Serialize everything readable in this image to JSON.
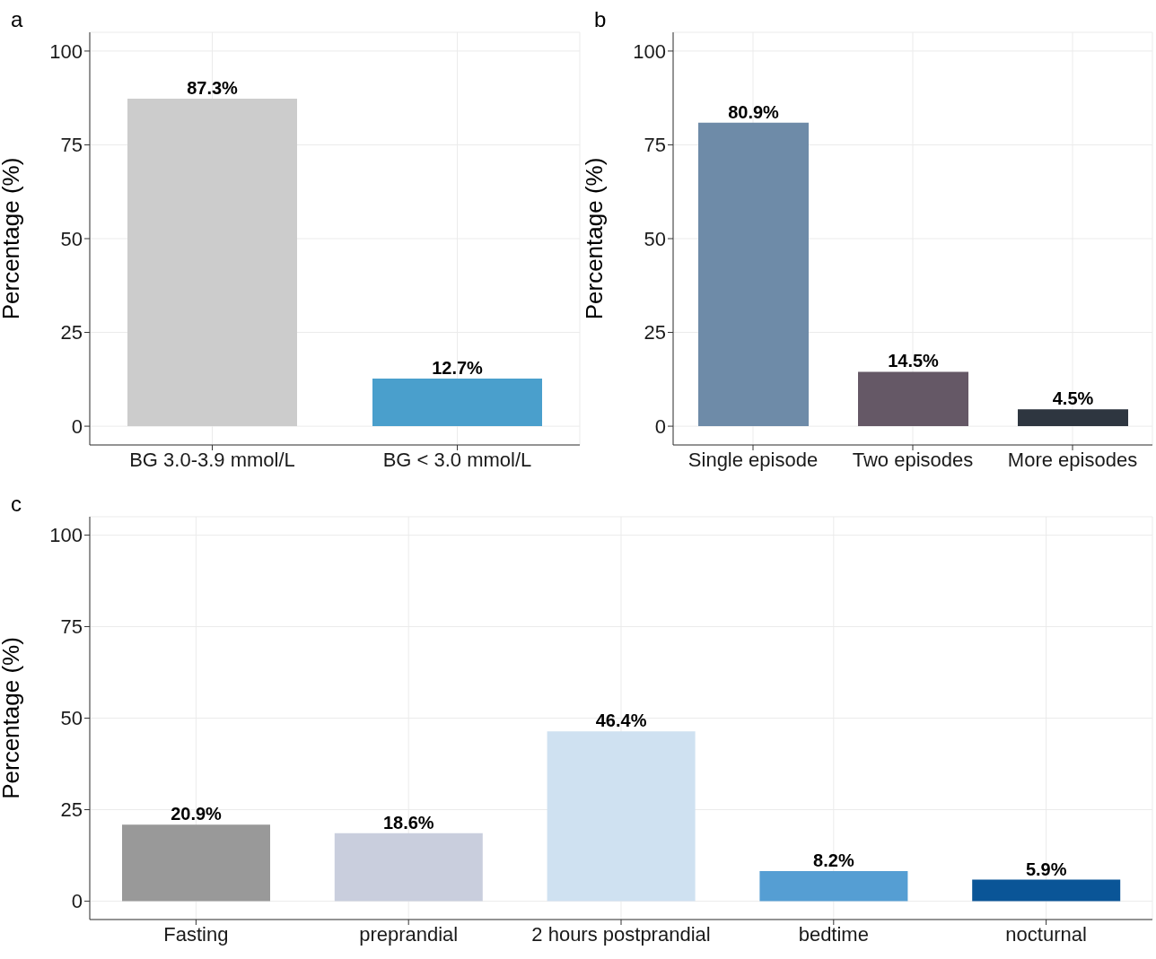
{
  "chart_data": [
    {
      "type": "bar",
      "title": "a",
      "ylabel": "Percentage (%)",
      "categories": [
        "BG 3.0-3.9 mmol/L",
        "BG < 3.0 mmol/L"
      ],
      "values": [
        87.3,
        12.7
      ],
      "colors": [
        "#cccccc",
        "#4a9fcc"
      ],
      "value_labels": [
        "87.3%",
        "12.7%"
      ],
      "ylim": [
        -5,
        105
      ],
      "yticks": [
        0,
        25,
        50,
        75,
        100
      ],
      "grid": true
    },
    {
      "type": "bar",
      "title": "b",
      "ylabel": "Percentage (%)",
      "categories": [
        "Single episode",
        "Two episodes",
        "More episodes"
      ],
      "values": [
        80.9,
        14.5,
        4.5
      ],
      "colors": [
        "#6e8ba8",
        "#655866",
        "#2e3640"
      ],
      "value_labels": [
        "80.9%",
        "14.5%",
        "4.5%"
      ],
      "ylim": [
        -5,
        105
      ],
      "yticks": [
        0,
        25,
        50,
        75,
        100
      ],
      "grid": true
    },
    {
      "type": "bar",
      "title": "c",
      "ylabel": "Percentage (%)",
      "categories": [
        "Fasting",
        "preprandial",
        "2 hours postprandial",
        "bedtime",
        "nocturnal"
      ],
      "values": [
        20.9,
        18.6,
        46.4,
        8.2,
        5.9
      ],
      "colors": [
        "#999999",
        "#c9cedd",
        "#cfe1f1",
        "#559ed3",
        "#0a5597"
      ],
      "value_labels": [
        "20.9%",
        "18.6%",
        "46.4%",
        "8.2%",
        "5.9%"
      ],
      "ylim": [
        -5,
        105
      ],
      "yticks": [
        0,
        25,
        50,
        75,
        100
      ],
      "grid": true
    }
  ]
}
